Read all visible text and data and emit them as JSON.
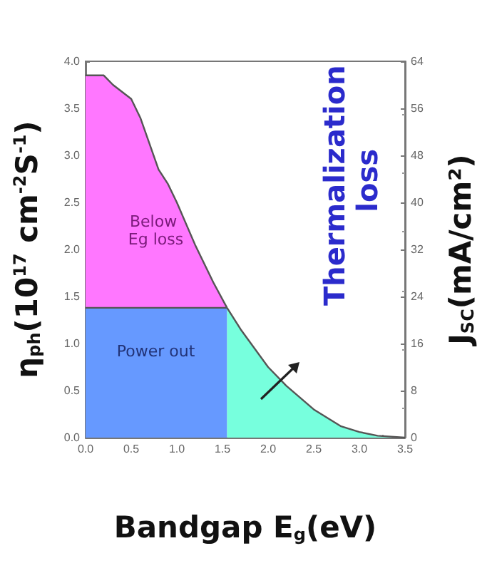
{
  "chart_data": {
    "type": "area",
    "xlabel": "Bandgap E$_{g}$(eV)",
    "ylabel": "η$_{ph}$(10$^{17}$ cm$^{-2}$S$^{-1}$)",
    "y2label": "J$_{SC}$(mA/cm²)",
    "series": [
      {
        "name": "Below Eg loss",
        "color": "#ff77ff",
        "x": [
          0,
          0.2,
          0.3,
          0.5,
          0.6,
          0.8,
          0.9,
          1.0,
          1.2,
          1.4,
          1.55
        ],
        "values": [
          3.85,
          3.85,
          3.75,
          3.6,
          3.4,
          2.85,
          2.7,
          2.5,
          2.05,
          1.65,
          1.38
        ]
      },
      {
        "name": "Power out",
        "color": "#6699ff",
        "x": [
          0,
          1.55
        ],
        "values": [
          1.38,
          1.38
        ]
      },
      {
        "name": "Thermalization loss",
        "color": "#77ffdd",
        "x": [
          1.55,
          1.7,
          2.0,
          2.2,
          2.5,
          2.8,
          3.0,
          3.2,
          3.5
        ],
        "values": [
          1.38,
          1.15,
          0.75,
          0.55,
          0.3,
          0.12,
          0.06,
          0.02,
          0
        ]
      }
    ],
    "xlim": [
      0,
      3.5
    ],
    "xticks": [
      {
        "value": 0,
        "label": "0.0"
      },
      {
        "value": 0.5,
        "label": "0.5"
      },
      {
        "value": 1,
        "label": "1.0"
      },
      {
        "value": 1.5,
        "label": "1.5"
      },
      {
        "value": 2,
        "label": "2.0"
      },
      {
        "value": 2.5,
        "label": "2.5"
      },
      {
        "value": 3,
        "label": "3.0"
      },
      {
        "value": 3.5,
        "label": "3.5"
      }
    ],
    "ylim": [
      0,
      4
    ],
    "yticks": [
      {
        "value": 0,
        "label": "0.0"
      },
      {
        "value": 0.5,
        "label": "0.5"
      },
      {
        "value": 1,
        "label": "1.0"
      },
      {
        "value": 1.5,
        "label": "1.5"
      },
      {
        "value": 2,
        "label": "2.0"
      },
      {
        "value": 2.5,
        "label": "2.5"
      },
      {
        "value": 3,
        "label": "3.0"
      },
      {
        "value": 3.5,
        "label": "3.5"
      },
      {
        "value": 4,
        "label": "4.0"
      }
    ],
    "y2lim": [
      0,
      64
    ],
    "y2ticks": [
      0,
      8,
      16,
      24,
      32,
      40,
      48,
      56,
      64
    ]
  }
}
